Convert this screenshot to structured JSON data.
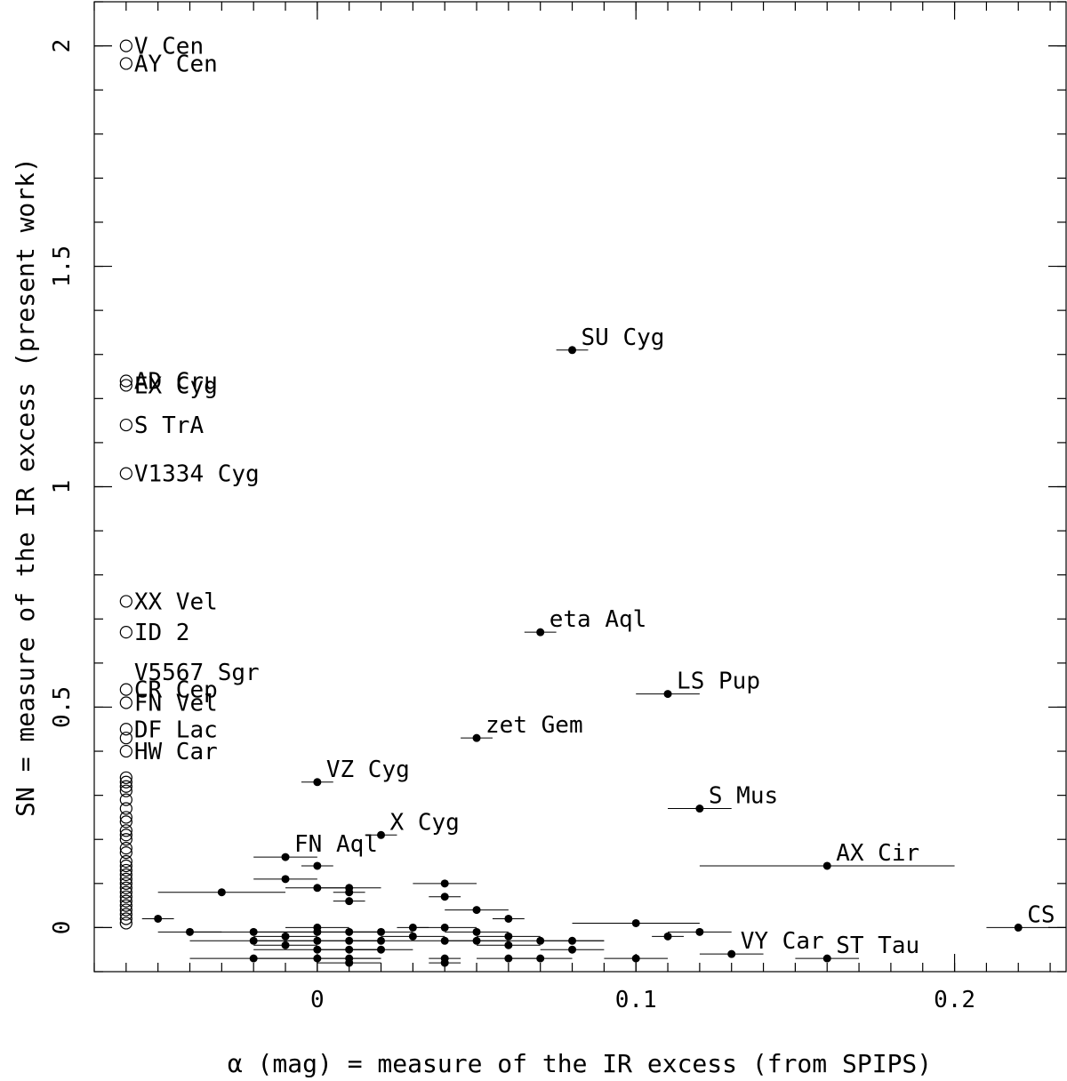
{
  "chart_data": {
    "type": "scatter",
    "xlabel": "α (mag) =  measure of the IR excess (from SPIPS)",
    "ylabel": "SN = measure of the IR excess (present work)",
    "xlim": [
      -0.07,
      0.235
    ],
    "ylim": [
      -0.1,
      2.1
    ],
    "x_ticks": [
      {
        "v": 0,
        "label": "0"
      },
      {
        "v": 0.1,
        "label": "0.1"
      },
      {
        "v": 0.2,
        "label": "0.2"
      }
    ],
    "y_ticks": [
      {
        "v": 0,
        "label": "0"
      },
      {
        "v": 0.5,
        "label": "0.5"
      },
      {
        "v": 1,
        "label": "1"
      },
      {
        "v": 1.5,
        "label": "1.5"
      },
      {
        "v": 2,
        "label": "2"
      }
    ],
    "x_minor_step": 0.01,
    "y_minor_step": 0.1,
    "open_x": -0.06,
    "open_points": [
      {
        "y": 2.0,
        "label": "V Cen"
      },
      {
        "y": 1.96,
        "label": "AY Cen"
      },
      {
        "y": 1.24,
        "label": "AD Cru"
      },
      {
        "y": 1.23,
        "label": "EX Cyg"
      },
      {
        "y": 1.14,
        "label": "S TrA"
      },
      {
        "y": 1.03,
        "label": "V1334 Cyg"
      },
      {
        "y": 0.74,
        "label": "XX Vel"
      },
      {
        "y": 0.67,
        "label": "ID 2"
      },
      {
        "y": 0.54,
        "label": "CR Cep"
      },
      {
        "y": 0.51,
        "label": "FN Vel"
      },
      {
        "y": 0.45,
        "label": "DF Lac"
      },
      {
        "y": 0.43,
        "label": ""
      },
      {
        "y": 0.4,
        "label": "HW Car"
      },
      {
        "y": 0.34,
        "label": ""
      },
      {
        "y": 0.33,
        "label": ""
      },
      {
        "y": 0.32,
        "label": ""
      },
      {
        "y": 0.31,
        "label": ""
      },
      {
        "y": 0.29,
        "label": ""
      },
      {
        "y": 0.27,
        "label": ""
      },
      {
        "y": 0.25,
        "label": ""
      },
      {
        "y": 0.24,
        "label": ""
      },
      {
        "y": 0.22,
        "label": ""
      },
      {
        "y": 0.21,
        "label": ""
      },
      {
        "y": 0.2,
        "label": ""
      },
      {
        "y": 0.18,
        "label": ""
      },
      {
        "y": 0.17,
        "label": ""
      },
      {
        "y": 0.15,
        "label": ""
      },
      {
        "y": 0.14,
        "label": ""
      },
      {
        "y": 0.13,
        "label": ""
      },
      {
        "y": 0.12,
        "label": ""
      },
      {
        "y": 0.11,
        "label": ""
      },
      {
        "y": 0.1,
        "label": ""
      },
      {
        "y": 0.09,
        "label": ""
      },
      {
        "y": 0.08,
        "label": ""
      },
      {
        "y": 0.07,
        "label": ""
      },
      {
        "y": 0.06,
        "label": ""
      },
      {
        "y": 0.05,
        "label": ""
      },
      {
        "y": 0.04,
        "label": ""
      },
      {
        "y": 0.03,
        "label": ""
      },
      {
        "y": 0.02,
        "label": ""
      },
      {
        "y": 0.01,
        "label": ""
      }
    ],
    "extra_labels": [
      {
        "x": -0.06,
        "y": 0.58,
        "text": "V5567 Sgr"
      }
    ],
    "filled_points": [
      {
        "x": 0.08,
        "y": 1.31,
        "xerr": 0.005,
        "label": "SU Cyg"
      },
      {
        "x": 0.07,
        "y": 0.67,
        "xerr": 0.005,
        "label": "eta Aql"
      },
      {
        "x": 0.11,
        "y": 0.53,
        "xerr": 0.01,
        "label": "LS Pup"
      },
      {
        "x": 0.05,
        "y": 0.43,
        "xerr": 0.005,
        "label": "zet Gem"
      },
      {
        "x": 0.0,
        "y": 0.33,
        "xerr": 0.005,
        "label": "VZ Cyg"
      },
      {
        "x": 0.12,
        "y": 0.27,
        "xerr": 0.01,
        "label": "S Mus"
      },
      {
        "x": 0.02,
        "y": 0.21,
        "xerr": 0.005,
        "label": "X Cyg"
      },
      {
        "x": -0.01,
        "y": 0.16,
        "xerr": 0.01,
        "label": "FN Aql"
      },
      {
        "x": 0.16,
        "y": 0.14,
        "xerr": 0.04,
        "label": "AX Cir"
      },
      {
        "x": 0.22,
        "y": 0.0,
        "xerr": 0.01,
        "label": "CS Vel"
      },
      {
        "x": 0.13,
        "y": -0.06,
        "xerr": 0.01,
        "label": "VY Car"
      },
      {
        "x": 0.16,
        "y": -0.07,
        "xerr": 0.01,
        "label": "ST Tau"
      },
      {
        "x": 0.0,
        "y": 0.14,
        "xerr": 0.005,
        "label": ""
      },
      {
        "x": -0.01,
        "y": 0.11,
        "xerr": 0.01,
        "label": ""
      },
      {
        "x": 0.04,
        "y": 0.1,
        "xerr": 0.01,
        "label": ""
      },
      {
        "x": -0.03,
        "y": 0.08,
        "xerr": 0.02,
        "label": ""
      },
      {
        "x": 0.0,
        "y": 0.09,
        "xerr": 0.01,
        "label": ""
      },
      {
        "x": 0.01,
        "y": 0.09,
        "xerr": 0.01,
        "label": ""
      },
      {
        "x": 0.01,
        "y": 0.08,
        "xerr": 0.005,
        "label": ""
      },
      {
        "x": 0.04,
        "y": 0.07,
        "xerr": 0.005,
        "label": ""
      },
      {
        "x": 0.01,
        "y": 0.06,
        "xerr": 0.005,
        "label": ""
      },
      {
        "x": 0.05,
        "y": 0.04,
        "xerr": 0.01,
        "label": ""
      },
      {
        "x": -0.05,
        "y": 0.02,
        "xerr": 0.005,
        "label": ""
      },
      {
        "x": 0.06,
        "y": 0.02,
        "xerr": 0.005,
        "label": ""
      },
      {
        "x": 0.03,
        "y": 0.0,
        "xerr": 0.005,
        "label": ""
      },
      {
        "x": 0.04,
        "y": 0.0,
        "xerr": 0.01,
        "label": ""
      },
      {
        "x": 0.1,
        "y": 0.01,
        "xerr": 0.02,
        "label": ""
      },
      {
        "x": 0.0,
        "y": 0.0,
        "xerr": 0.01,
        "label": ""
      },
      {
        "x": 0.01,
        "y": -0.01,
        "xerr": 0.01,
        "label": ""
      },
      {
        "x": -0.04,
        "y": -0.01,
        "xerr": 0.01,
        "label": ""
      },
      {
        "x": -0.02,
        "y": -0.01,
        "xerr": 0.02,
        "label": ""
      },
      {
        "x": 0.0,
        "y": -0.01,
        "xerr": 0.02,
        "label": ""
      },
      {
        "x": 0.02,
        "y": -0.01,
        "xerr": 0.01,
        "label": ""
      },
      {
        "x": 0.05,
        "y": -0.01,
        "xerr": 0.01,
        "label": ""
      },
      {
        "x": 0.12,
        "y": -0.01,
        "xerr": 0.01,
        "label": ""
      },
      {
        "x": 0.11,
        "y": -0.02,
        "xerr": 0.005,
        "label": ""
      },
      {
        "x": 0.03,
        "y": -0.02,
        "xerr": 0.01,
        "label": ""
      },
      {
        "x": -0.01,
        "y": -0.02,
        "xerr": 0.01,
        "label": ""
      },
      {
        "x": 0.06,
        "y": -0.02,
        "xerr": 0.01,
        "label": ""
      },
      {
        "x": -0.02,
        "y": -0.03,
        "xerr": 0.02,
        "label": ""
      },
      {
        "x": 0.0,
        "y": -0.03,
        "xerr": 0.02,
        "label": ""
      },
      {
        "x": 0.01,
        "y": -0.03,
        "xerr": 0.01,
        "label": ""
      },
      {
        "x": 0.02,
        "y": -0.03,
        "xerr": 0.01,
        "label": ""
      },
      {
        "x": 0.04,
        "y": -0.03,
        "xerr": 0.01,
        "label": ""
      },
      {
        "x": 0.05,
        "y": -0.03,
        "xerr": 0.01,
        "label": ""
      },
      {
        "x": 0.07,
        "y": -0.03,
        "xerr": 0.02,
        "label": ""
      },
      {
        "x": 0.08,
        "y": -0.03,
        "xerr": 0.01,
        "label": ""
      },
      {
        "x": -0.01,
        "y": -0.04,
        "xerr": 0.01,
        "label": ""
      },
      {
        "x": 0.06,
        "y": -0.04,
        "xerr": 0.01,
        "label": ""
      },
      {
        "x": 0.02,
        "y": -0.05,
        "xerr": 0.01,
        "label": ""
      },
      {
        "x": 0.0,
        "y": -0.05,
        "xerr": 0.02,
        "label": ""
      },
      {
        "x": 0.01,
        "y": -0.05,
        "xerr": 0.01,
        "label": ""
      },
      {
        "x": 0.08,
        "y": -0.05,
        "xerr": 0.01,
        "label": ""
      },
      {
        "x": -0.02,
        "y": -0.07,
        "xerr": 0.02,
        "label": ""
      },
      {
        "x": 0.0,
        "y": -0.07,
        "xerr": 0.02,
        "label": ""
      },
      {
        "x": 0.01,
        "y": -0.07,
        "xerr": 0.01,
        "label": ""
      },
      {
        "x": 0.04,
        "y": -0.07,
        "xerr": 0.005,
        "label": ""
      },
      {
        "x": 0.06,
        "y": -0.07,
        "xerr": 0.01,
        "label": ""
      },
      {
        "x": 0.07,
        "y": -0.07,
        "xerr": 0.01,
        "label": ""
      },
      {
        "x": 0.1,
        "y": -0.07,
        "xerr": 0.01,
        "label": ""
      },
      {
        "x": 0.01,
        "y": -0.08,
        "xerr": 0.01,
        "label": ""
      },
      {
        "x": 0.04,
        "y": -0.08,
        "xerr": 0.005,
        "label": ""
      }
    ],
    "grid": false,
    "legend": "none"
  }
}
